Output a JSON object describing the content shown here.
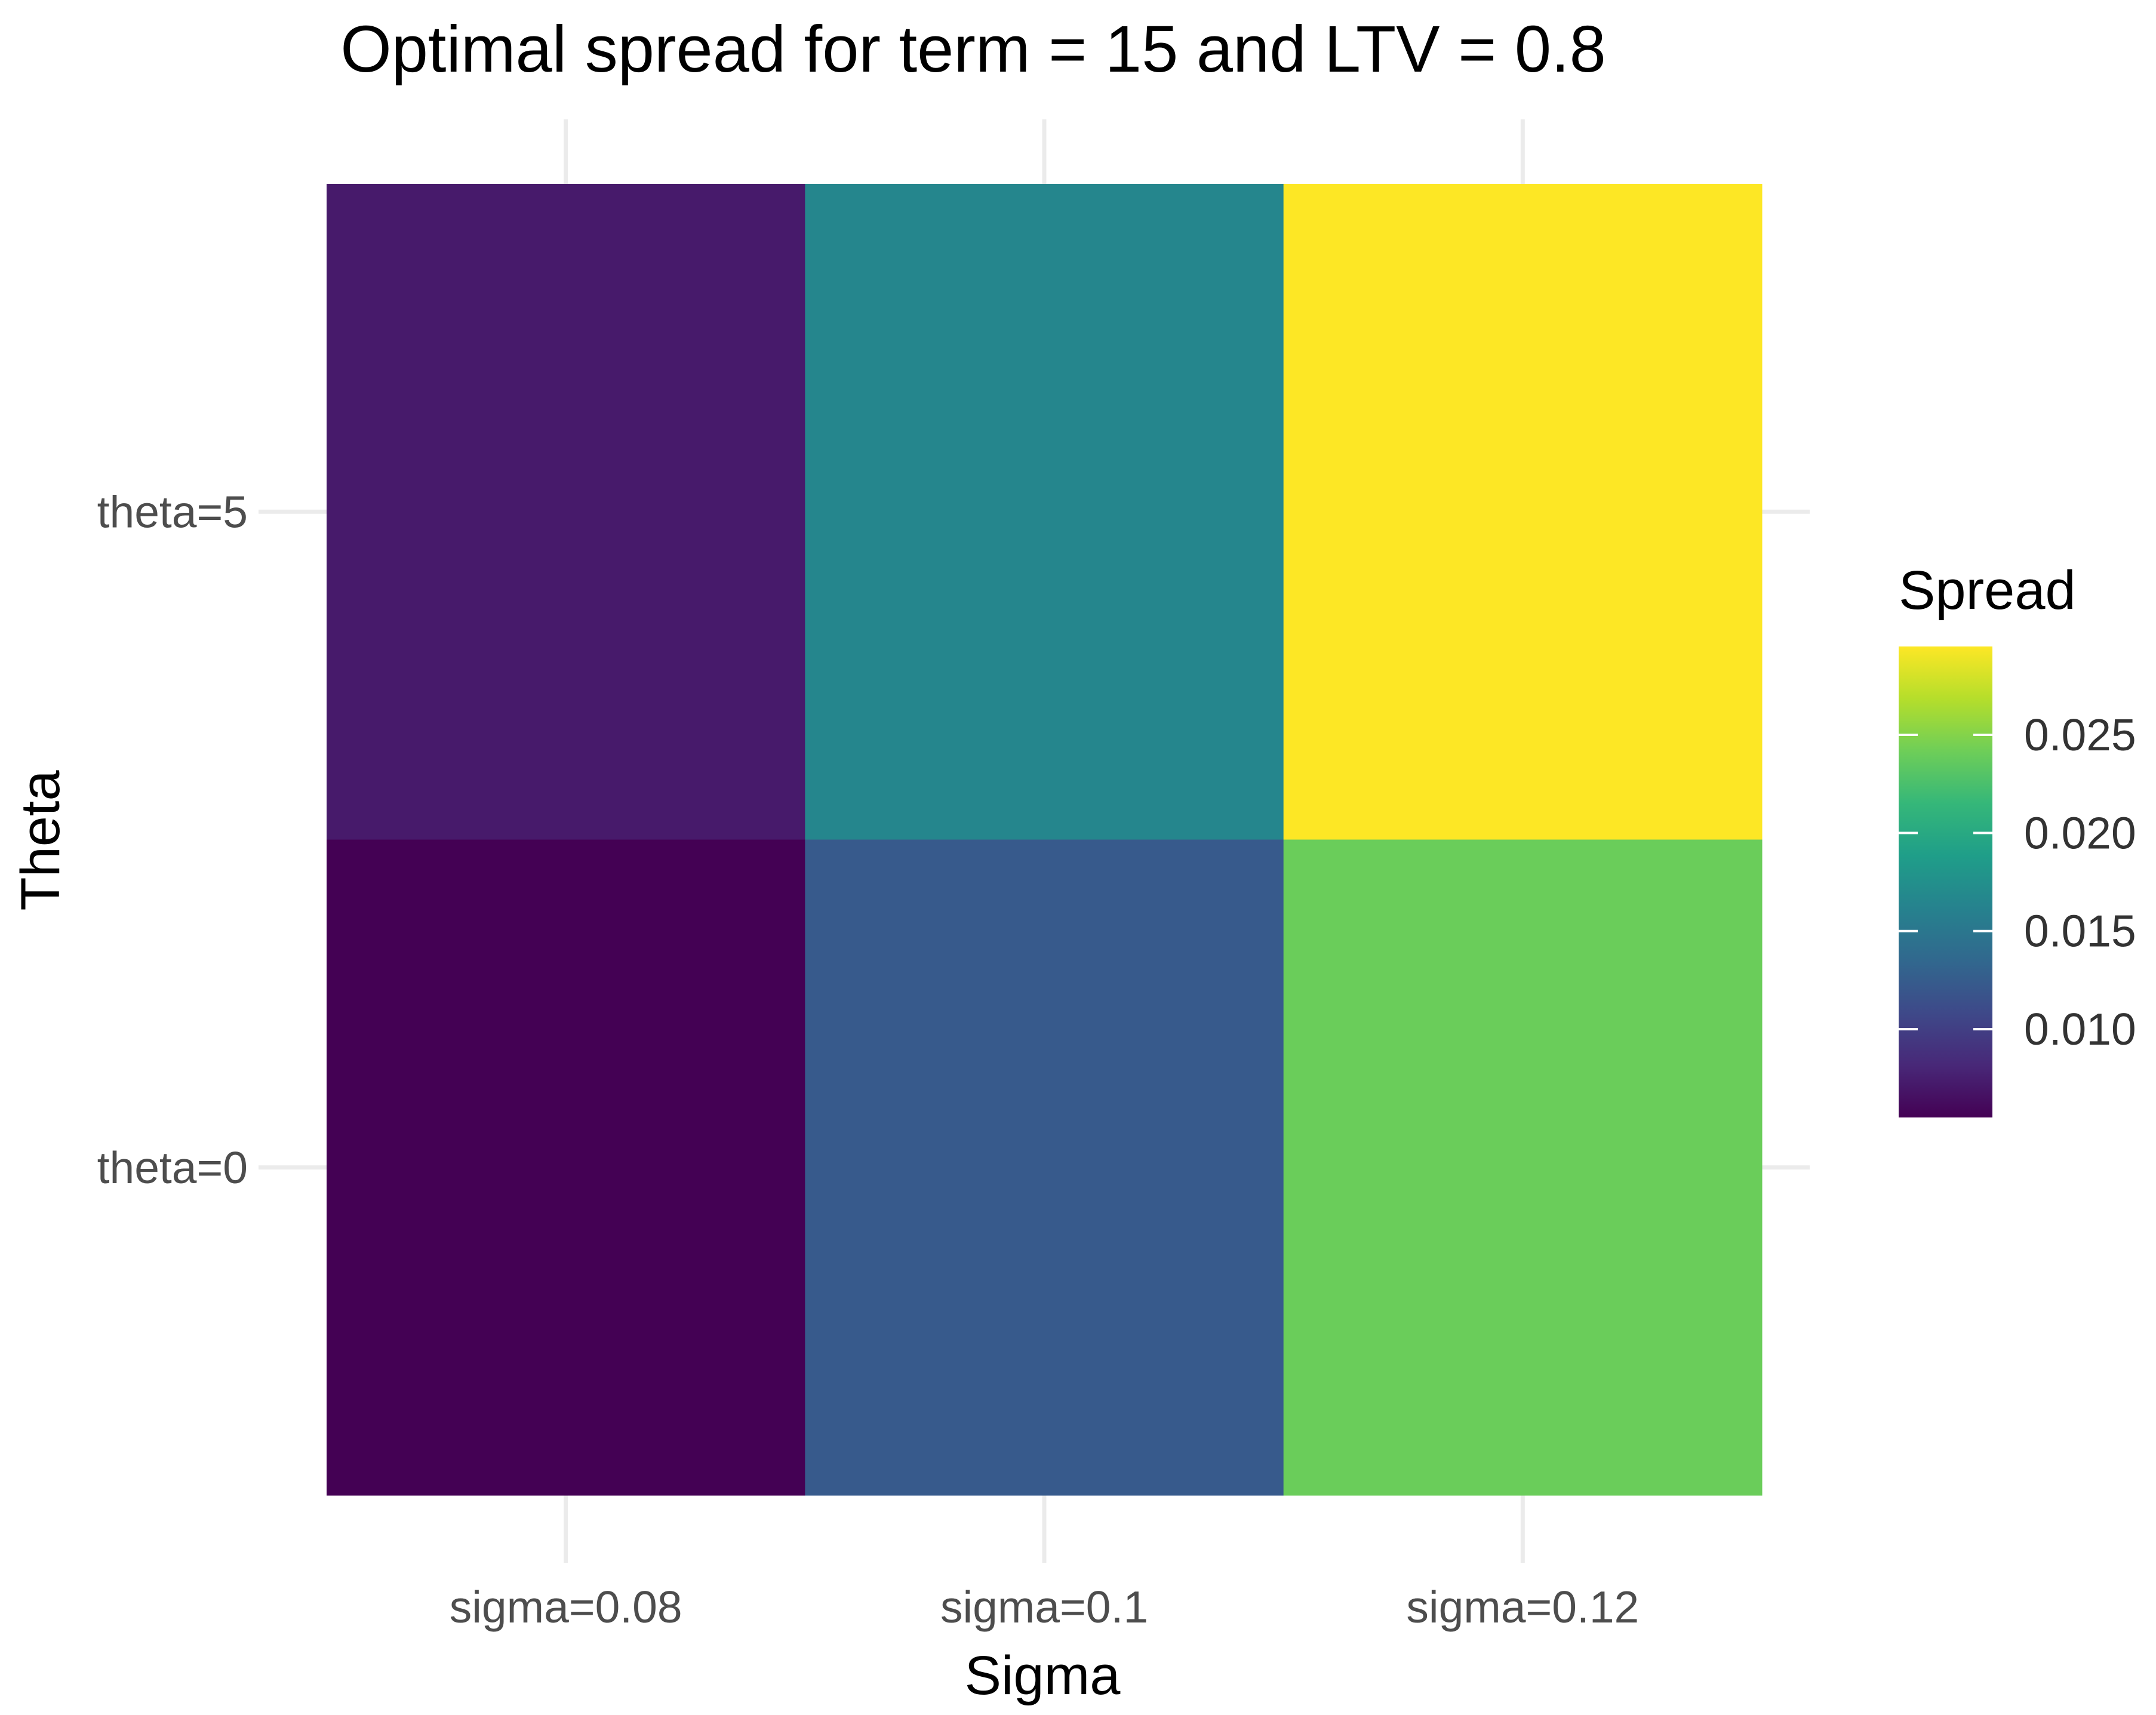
{
  "chart_data": {
    "type": "heatmap",
    "title": "Optimal spread for term = 15 and LTV = 0.8",
    "xlabel": "Sigma",
    "ylabel": "Theta",
    "x_categories": [
      "sigma=0.08",
      "sigma=0.1",
      "sigma=0.12"
    ],
    "y_categories": [
      "theta=0",
      "theta=5"
    ],
    "cells": [
      {
        "x": "sigma=0.08",
        "y": "theta=5",
        "value": 0.0072
      },
      {
        "x": "sigma=0.1",
        "y": "theta=5",
        "value": 0.0165
      },
      {
        "x": "sigma=0.12",
        "y": "theta=5",
        "value": 0.0295
      },
      {
        "x": "sigma=0.08",
        "y": "theta=0",
        "value": 0.0055
      },
      {
        "x": "sigma=0.1",
        "y": "theta=0",
        "value": 0.0123
      },
      {
        "x": "sigma=0.12",
        "y": "theta=0",
        "value": 0.024
      }
    ],
    "grid": true,
    "legend": {
      "title": "Spread",
      "placement": "right",
      "ticks": [
        0.01,
        0.015,
        0.02,
        0.025
      ],
      "tick_labels": [
        "0.010",
        "0.015",
        "0.020",
        "0.025"
      ],
      "range": [
        0.0055,
        0.0295
      ],
      "palette": [
        "#440154",
        "#482878",
        "#3e4989",
        "#31688e",
        "#26828e",
        "#1f9e89",
        "#35b779",
        "#6ece58",
        "#b5de2b",
        "#fde725"
      ]
    }
  }
}
